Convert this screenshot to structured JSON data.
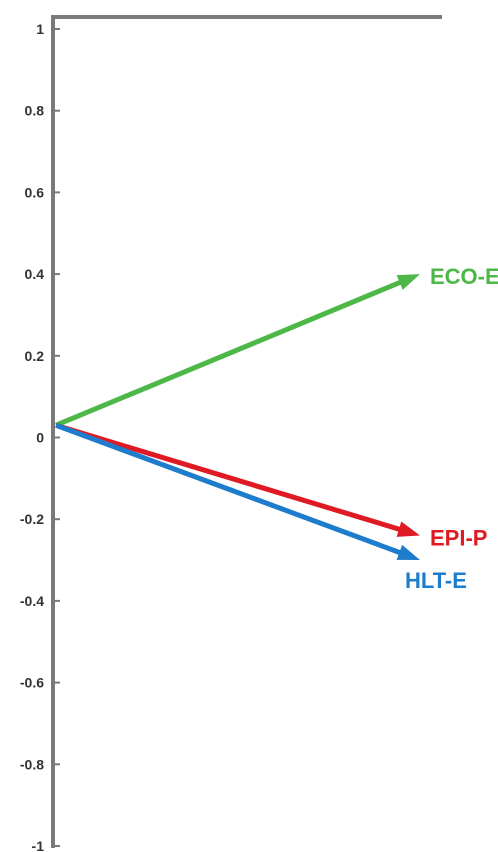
{
  "chart_data": {
    "type": "vector",
    "title": "",
    "xlabel": "",
    "ylabel": "",
    "ylim": [
      -1,
      1
    ],
    "yticks": [
      "1",
      "0.8",
      "0.6",
      "0.4",
      "0.2",
      "0",
      "-0.2",
      "-0.4",
      "-0.6",
      "-0.8",
      "-1"
    ],
    "grid": false,
    "origin": 0.03,
    "vectors": [
      {
        "name": "ECO-E",
        "value": 0.4,
        "color": "#4db848"
      },
      {
        "name": "EPI-P",
        "value": -0.24,
        "color": "#e01a22"
      },
      {
        "name": "HLT-E",
        "value": -0.3,
        "color": "#1e7ccc"
      }
    ]
  }
}
